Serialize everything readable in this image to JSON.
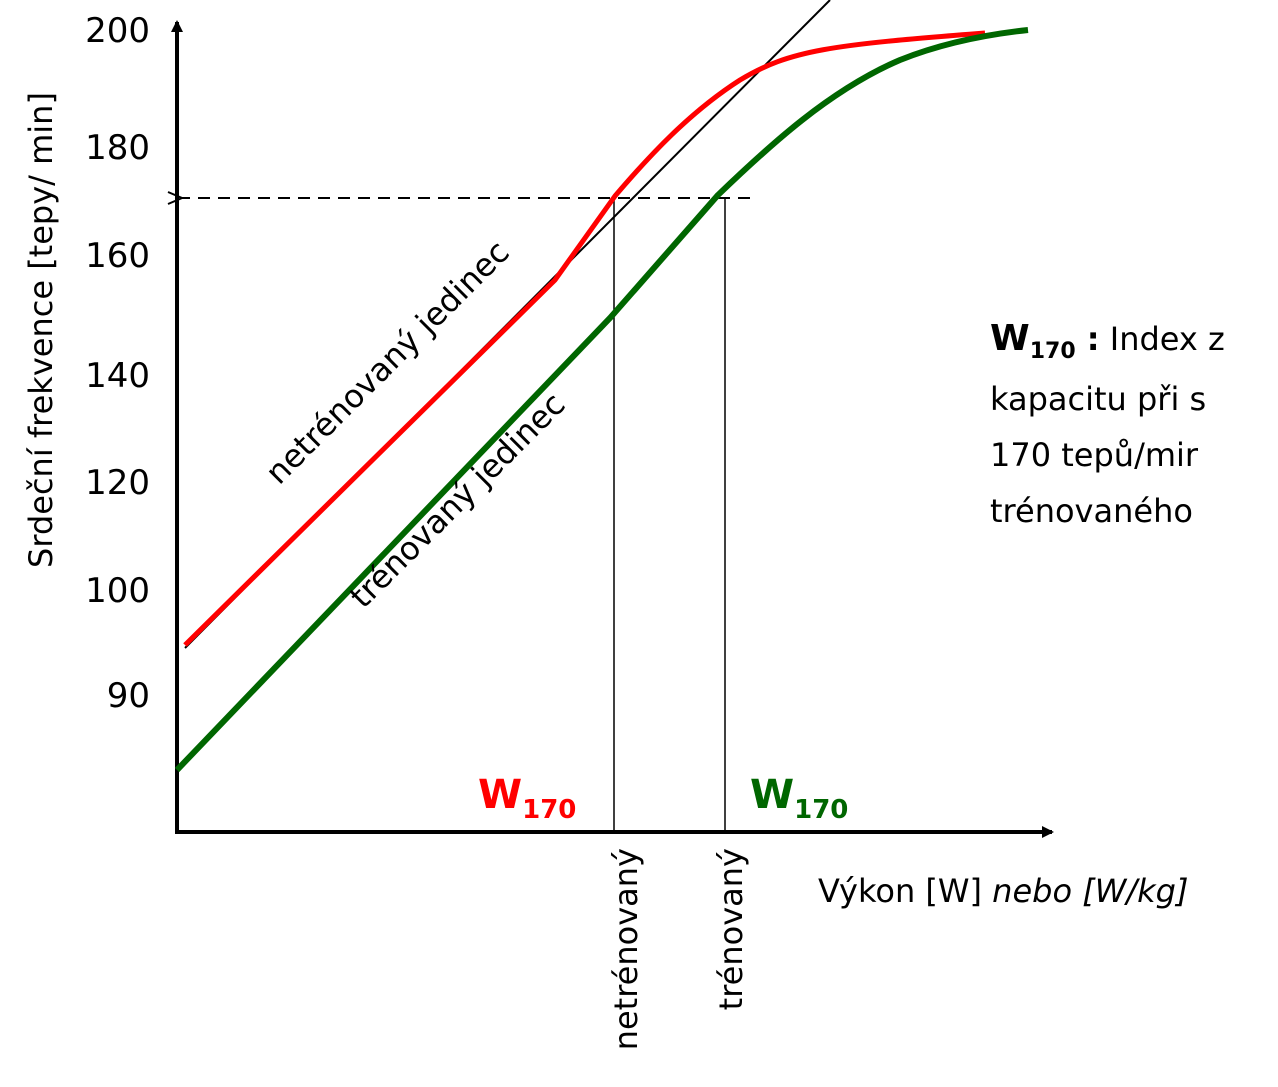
{
  "y_axis": {
    "label": "Srdeční  frekvence [tepy/ min]",
    "ticks": [
      "200",
      "180",
      "160",
      "140",
      "120",
      "100",
      "90"
    ]
  },
  "x_axis": {
    "label": "Výkon [W] ",
    "label_italic": "nebo [W/kg]"
  },
  "curves": {
    "untrained": "netrénovaný jedinec",
    "trained": "trénovaný jedinec"
  },
  "markers": {
    "untrained": {
      "main": "W",
      "sub": "170"
    },
    "trained": {
      "main": "W",
      "sub": "170"
    }
  },
  "x_labels": {
    "untrained": "netrénovaný",
    "trained": "trénovaný"
  },
  "note": {
    "main": "W",
    "sub": "170",
    "sep": " :",
    "first_line": " Index z",
    "lines": [
      "kapacitu při s",
      "170 tepů/mir",
      "trénovaného"
    ]
  }
}
